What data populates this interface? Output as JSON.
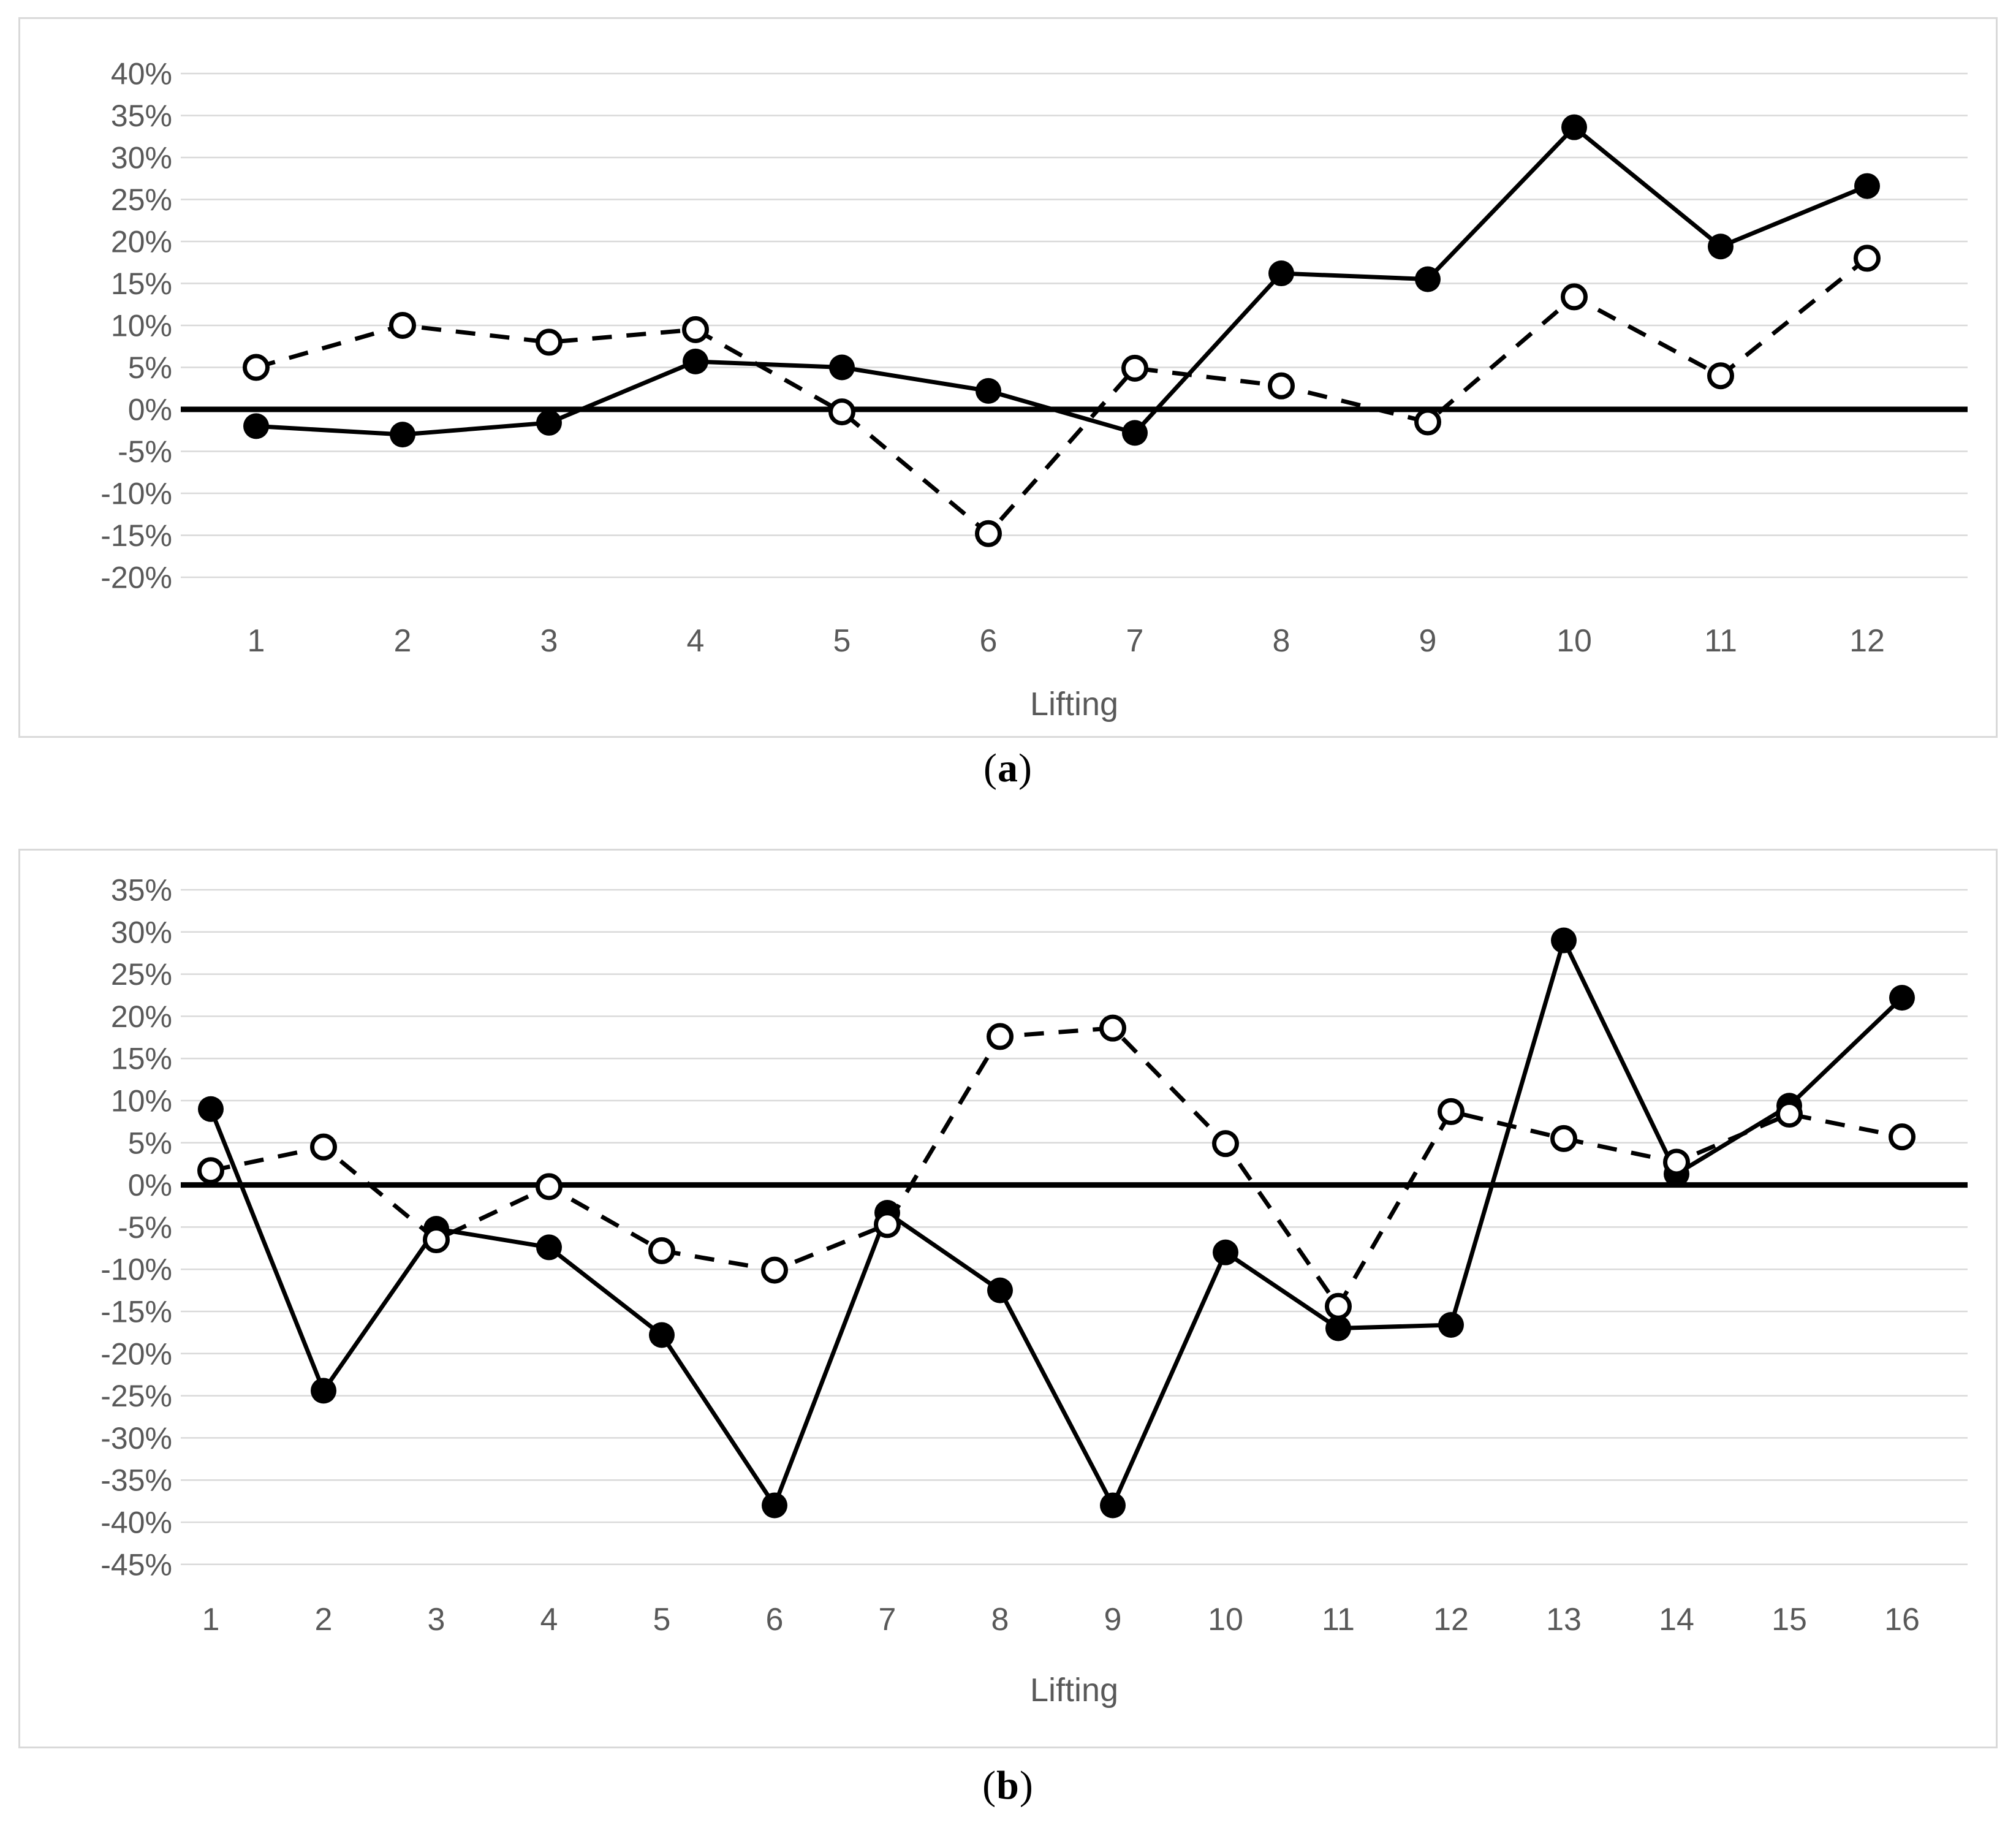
{
  "page": {
    "background": "#ffffff"
  },
  "figure": {
    "captions": {
      "a_prefix": "(",
      "a_letter": "a",
      "a_suffix": ")",
      "b_prefix": "(",
      "b_letter": "b",
      "b_suffix": ")"
    }
  },
  "chart_data": [
    {
      "id": "a",
      "type": "line",
      "title": "",
      "xlabel": "Lifting",
      "ylabel": "",
      "categories": [
        "1",
        "2",
        "3",
        "4",
        "5",
        "6",
        "7",
        "8",
        "9",
        "10",
        "11",
        "12"
      ],
      "series": [
        {
          "name": "filled-circle-solid-line",
          "marker": "filled",
          "line": "solid",
          "values": [
            -2,
            -3,
            -1.6,
            5.7,
            5,
            2.2,
            -2.8,
            16.2,
            15.5,
            33.6,
            19.4,
            26.6
          ]
        },
        {
          "name": "open-circle-dashed-line",
          "marker": "open",
          "line": "dashed",
          "values": [
            5,
            10,
            8,
            9.5,
            -0.3,
            -14.8,
            4.9,
            2.8,
            -1.5,
            13.4,
            4,
            18
          ]
        }
      ],
      "ylim": [
        -20,
        40
      ],
      "ytick_step": 5,
      "ytick_labels": [
        "40%",
        "35%",
        "30%",
        "25%",
        "20%",
        "15%",
        "10%",
        "5%",
        "0%",
        "-5%",
        "-10%",
        "-15%",
        "-20%"
      ],
      "grid": true,
      "legend": "none",
      "zero_line": true,
      "colors": {
        "series": "#000000",
        "grid": "#d9d9d9",
        "text": "#595959",
        "zero_line": "#000000",
        "border": "#d9d9d9"
      }
    },
    {
      "id": "b",
      "type": "line",
      "title": "",
      "xlabel": "Lifting",
      "ylabel": "",
      "categories": [
        "1",
        "2",
        "3",
        "4",
        "5",
        "6",
        "7",
        "8",
        "9",
        "10",
        "11",
        "12",
        "13",
        "14",
        "15",
        "16"
      ],
      "series": [
        {
          "name": "filled-circle-solid-line",
          "marker": "filled",
          "line": "solid",
          "values": [
            9,
            -24.4,
            -5.2,
            -7.4,
            -17.8,
            -38,
            -3.3,
            -12.5,
            -38,
            -8,
            -17,
            -16.6,
            29,
            1.3,
            9.4,
            22.2
          ]
        },
        {
          "name": "open-circle-dashed-line",
          "marker": "open",
          "line": "dashed",
          "values": [
            1.7,
            4.5,
            -6.5,
            -0.2,
            -7.8,
            -10.1,
            -4.7,
            17.6,
            18.6,
            4.9,
            -14.4,
            8.7,
            5.5,
            2.7,
            8.4,
            5.7
          ]
        }
      ],
      "ylim": [
        -45,
        35
      ],
      "ytick_step": 5,
      "ytick_labels": [
        "35%",
        "30%",
        "25%",
        "20%",
        "15%",
        "10%",
        "5%",
        "0%",
        "-5%",
        "-10%",
        "-15%",
        "-20%",
        "-25%",
        "-30%",
        "-35%",
        "-40%",
        "-45%"
      ],
      "grid": true,
      "legend": "none",
      "zero_line": true,
      "colors": {
        "series": "#000000",
        "grid": "#d9d9d9",
        "text": "#595959",
        "zero_line": "#000000",
        "border": "#d9d9d9"
      }
    }
  ]
}
